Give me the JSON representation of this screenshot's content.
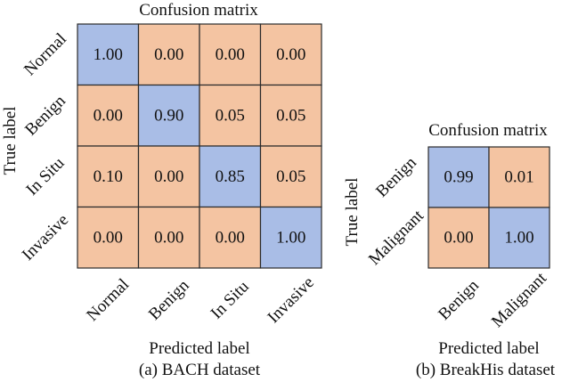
{
  "chart_data": [
    {
      "type": "heatmap",
      "title": "Confusion matrix",
      "xlabel": "Predicted label",
      "ylabel": "True label",
      "caption": "(a) BACH dataset",
      "x_categories": [
        "Normal",
        "Benign",
        "In Situ",
        "Invasive"
      ],
      "y_categories": [
        "Normal",
        "Benign",
        "In Situ",
        "Invasive"
      ],
      "values": [
        [
          1.0,
          0.0,
          0.0,
          0.0
        ],
        [
          0.0,
          0.9,
          0.05,
          0.05
        ],
        [
          0.1,
          0.0,
          0.85,
          0.05
        ],
        [
          0.0,
          0.0,
          0.0,
          1.0
        ]
      ],
      "value_labels": [
        [
          "1.00",
          "0.00",
          "0.00",
          "0.00"
        ],
        [
          "0.00",
          "0.90",
          "0.05",
          "0.05"
        ],
        [
          "0.10",
          "0.00",
          "0.85",
          "0.05"
        ],
        [
          "0.00",
          "0.00",
          "0.00",
          "1.00"
        ]
      ]
    },
    {
      "type": "heatmap",
      "title": "Confusion matrix",
      "xlabel": "Predicted label",
      "ylabel": "True label",
      "caption": "(b) BreakHis dataset",
      "x_categories": [
        "Benign",
        "Malignant"
      ],
      "y_categories": [
        "Benign",
        "Malignant"
      ],
      "values": [
        [
          0.99,
          0.01
        ],
        [
          0.0,
          1.0
        ]
      ],
      "value_labels": [
        [
          "0.99",
          "0.01"
        ],
        [
          "0.00",
          "1.00"
        ]
      ]
    }
  ],
  "colors": {
    "diagonal_fill": "#a9bde6",
    "offdiagonal_fill": "#f4c4a2",
    "grid_stroke": "#2b2b2b"
  }
}
